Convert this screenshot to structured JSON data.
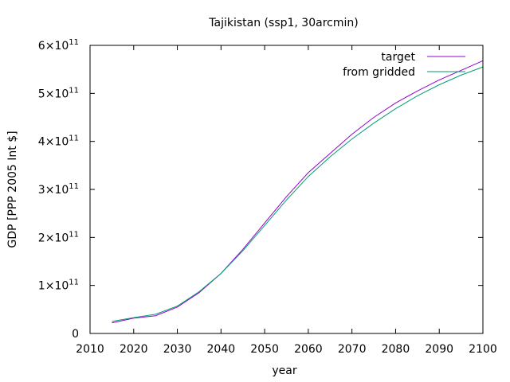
{
  "chart_data": {
    "type": "line",
    "title": "Tajikistan (ssp1, 30arcmin)",
    "xlabel": "year",
    "ylabel": "GDP [PPP 2005 Int $]",
    "xlim": [
      2010,
      2100
    ],
    "ylim": [
      0,
      600000000000
    ],
    "x_ticks": [
      "2010",
      "2020",
      "2030",
      "2040",
      "2050",
      "2060",
      "2070",
      "2080",
      "2090",
      "2100"
    ],
    "y_ticks": [
      {
        "value": 0,
        "label": "0"
      },
      {
        "value": 100000000000,
        "mant": "1",
        "exp": "11"
      },
      {
        "value": 200000000000,
        "mant": "2",
        "exp": "11"
      },
      {
        "value": 300000000000,
        "mant": "3",
        "exp": "11"
      },
      {
        "value": 400000000000,
        "mant": "4",
        "exp": "11"
      },
      {
        "value": 500000000000,
        "mant": "5",
        "exp": "11"
      },
      {
        "value": 600000000000,
        "mant": "6",
        "exp": "11"
      }
    ],
    "grid": false,
    "legend_position": "top-right",
    "x": [
      2015,
      2020,
      2025,
      2030,
      2035,
      2040,
      2045,
      2050,
      2055,
      2060,
      2065,
      2070,
      2075,
      2080,
      2085,
      2090,
      2095,
      2100
    ],
    "series": [
      {
        "name": "target",
        "color": "#9400d3",
        "values": [
          22000000000.0,
          32000000000.0,
          37000000000.0,
          55000000000.0,
          85000000000.0,
          125000000000.0,
          175000000000.0,
          230000000000.0,
          285000000000.0,
          335000000000.0,
          375000000000.0,
          415000000000.0,
          450000000000.0,
          480000000000.0,
          505000000000.0,
          528000000000.0,
          548000000000.0,
          568000000000.0
        ]
      },
      {
        "name": "from gridded",
        "color": "#009e73",
        "values": [
          25000000000.0,
          33000000000.0,
          40000000000.0,
          57000000000.0,
          87000000000.0,
          125000000000.0,
          172000000000.0,
          225000000000.0,
          278000000000.0,
          327000000000.0,
          368000000000.0,
          405000000000.0,
          438000000000.0,
          468000000000.0,
          495000000000.0,
          518000000000.0,
          538000000000.0,
          555000000000.0
        ]
      }
    ]
  }
}
